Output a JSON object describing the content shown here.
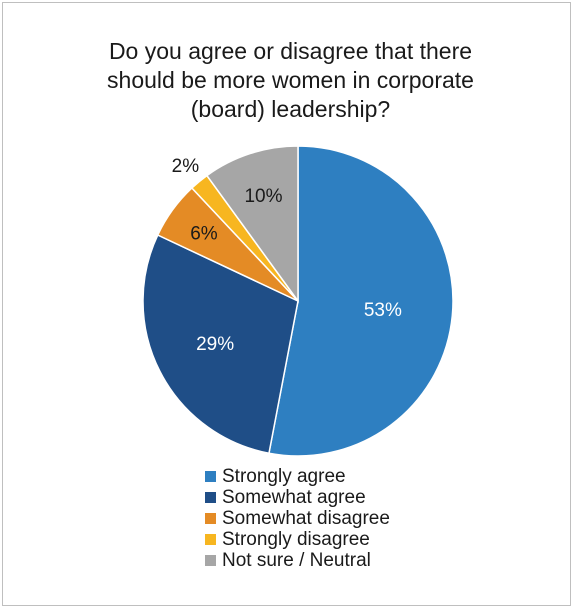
{
  "chart_data": {
    "type": "pie",
    "title": "Do you agree or disagree that there should be more women in corporate (board) leadership?",
    "slices": [
      {
        "label": "Strongly agree",
        "value": 53,
        "data_label": "53%",
        "color": "#2E7FC1",
        "label_color": "#ffffff"
      },
      {
        "label": "Somewhat agree",
        "value": 29,
        "data_label": "29%",
        "color": "#1F4E87",
        "label_color": "#ffffff"
      },
      {
        "label": "Somewhat disagree",
        "value": 6,
        "data_label": "6%",
        "color": "#E48B25",
        "label_color": "#1a1a1a"
      },
      {
        "label": "Strongly disagree",
        "value": 2,
        "data_label": "2%",
        "color": "#F7B620",
        "label_color": "#1a1a1a"
      },
      {
        "label": "Not sure / Neutral",
        "value": 10,
        "data_label": "10%",
        "color": "#A6A6A6",
        "label_color": "#1a1a1a"
      }
    ],
    "legend_position": "bottom"
  }
}
